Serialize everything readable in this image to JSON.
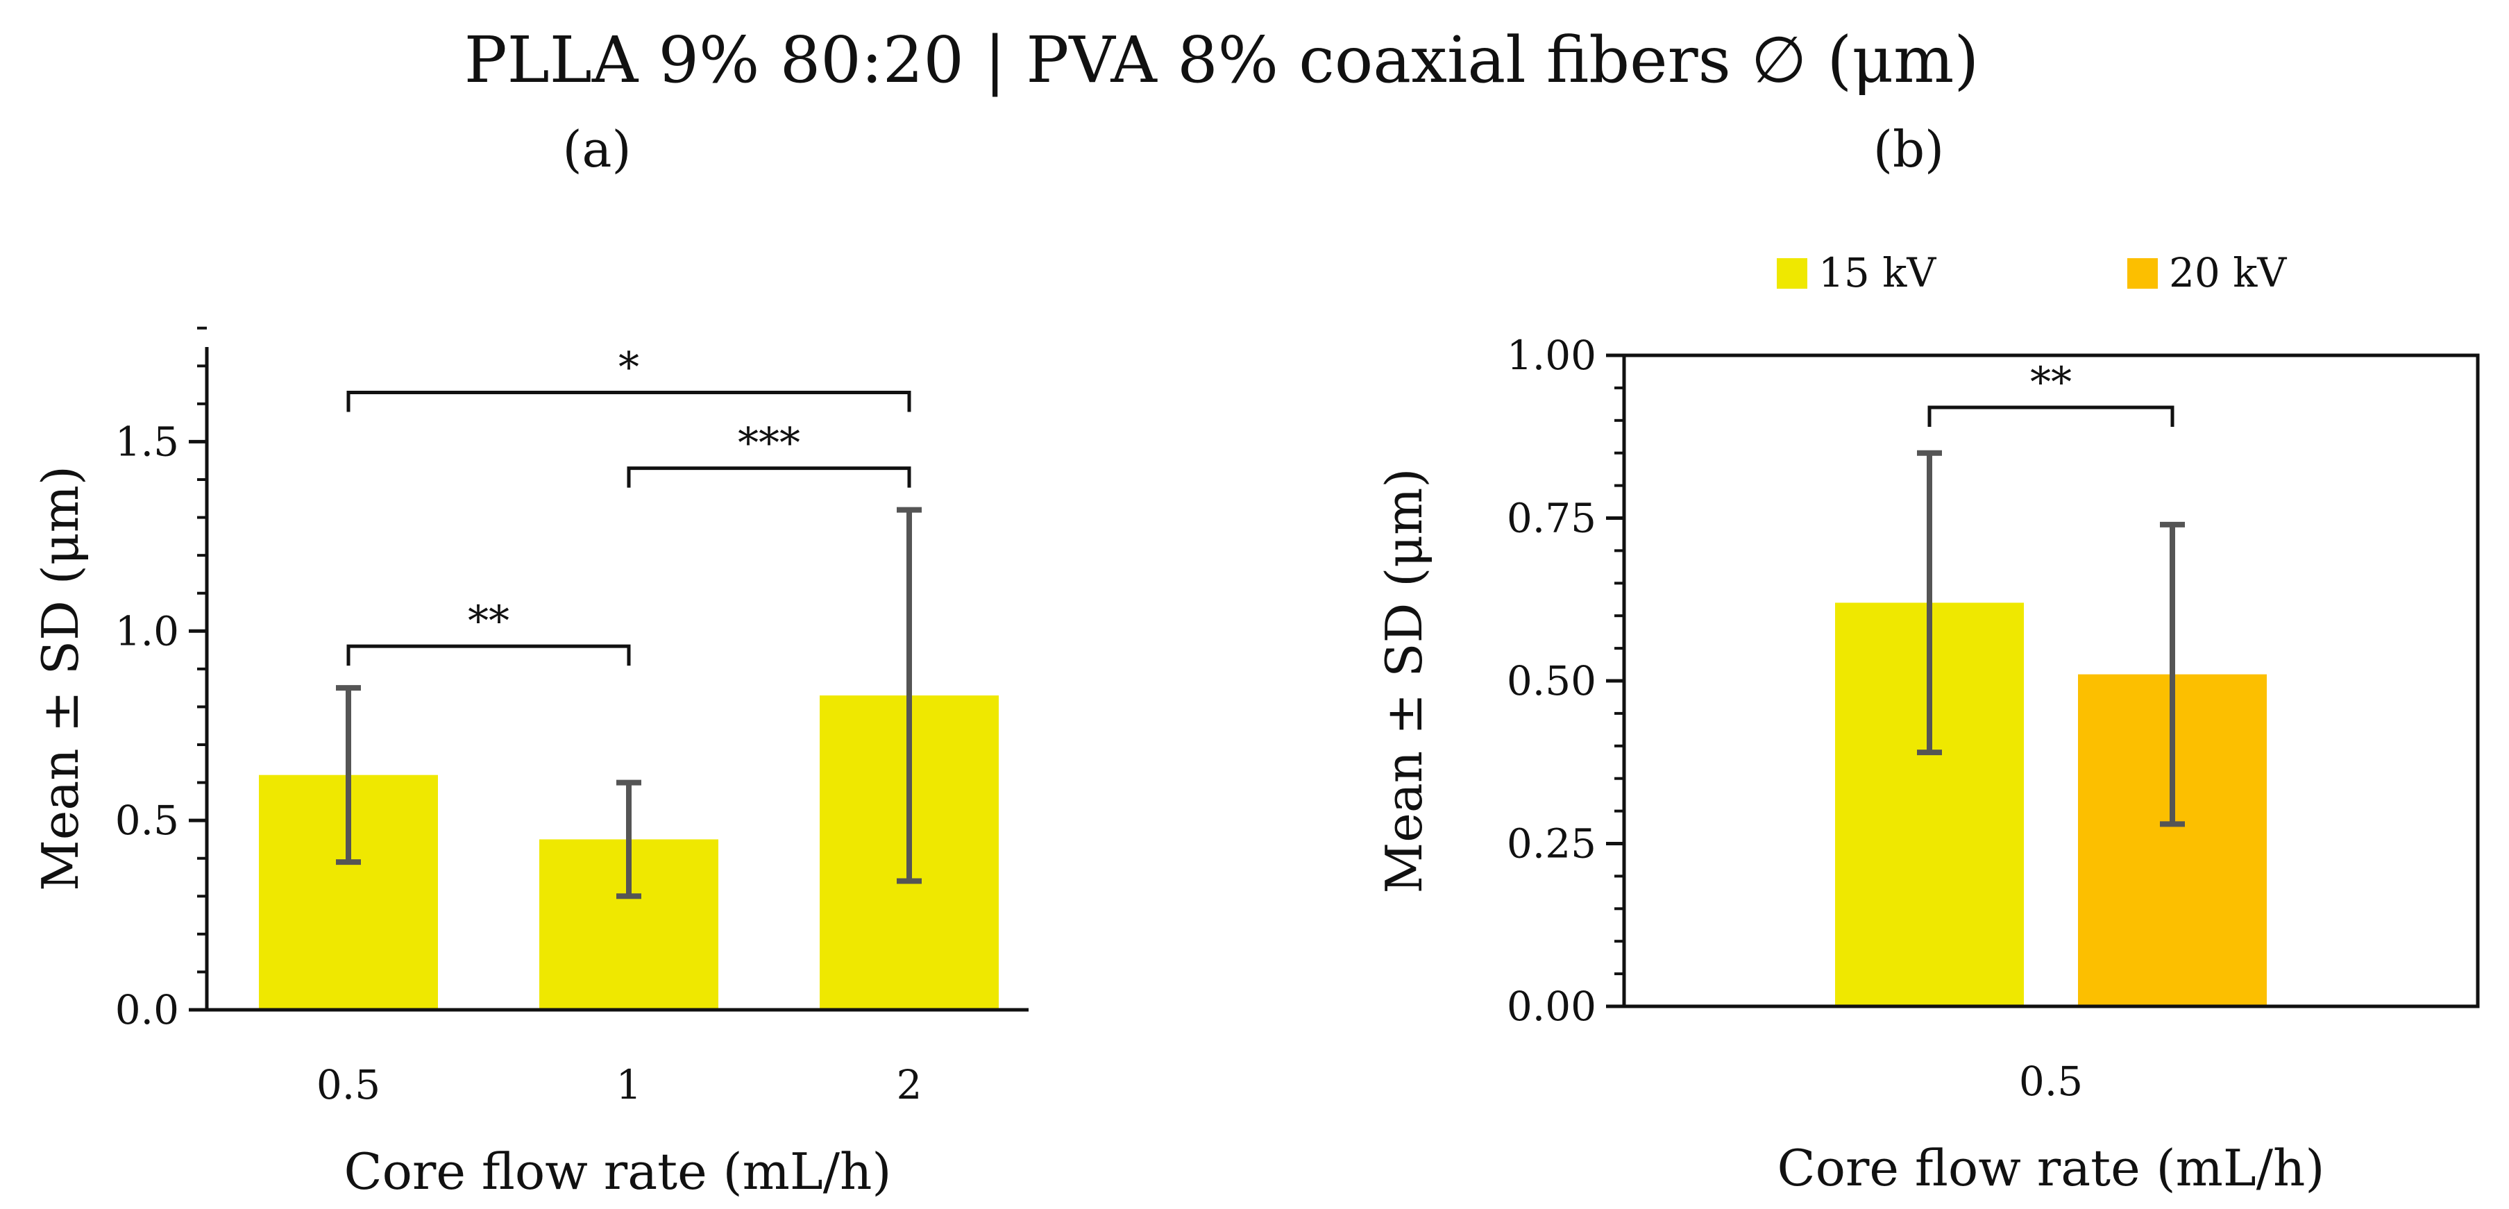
{
  "figure_title": "PLLA 9% 80:20 | PVA 8% coaxial fibers ∅ (μm)",
  "colors": {
    "yellow": "#EFE800",
    "orange": "#FCBF00",
    "error_bar": "#555555",
    "axis": "#111111"
  },
  "chart_data": [
    {
      "panel_label": "(a)",
      "type": "bar",
      "title": "",
      "categories": [
        "0.5",
        "1",
        "2"
      ],
      "series": [
        {
          "name": "",
          "color": "#EFE800",
          "values": [
            0.62,
            0.45,
            0.83
          ],
          "errors": [
            0.23,
            0.15,
            0.49
          ]
        }
      ],
      "xlabel": "Core flow rate (mL/h)",
      "ylabel": "Mean ± SD (μm)",
      "ylim": [
        0,
        1.75
      ],
      "yticks": [
        0.0,
        0.5,
        1.0,
        1.5
      ],
      "ytick_labels": [
        "0.0",
        "0.5",
        "1.0",
        "1.5"
      ],
      "minor_tick_step": 0.1,
      "legend": [],
      "significance": [
        {
          "from": 0,
          "to": 1,
          "label": "**",
          "y": 0.96
        },
        {
          "from": 1,
          "to": 2,
          "label": "***",
          "y": 1.43
        },
        {
          "from": 0,
          "to": 2,
          "label": "*",
          "y": 1.63
        }
      ]
    },
    {
      "panel_label": "(b)",
      "type": "bar",
      "title": "",
      "categories": [
        "0.5"
      ],
      "series": [
        {
          "name": "15 kV",
          "color": "#EFE800",
          "values": [
            0.62
          ],
          "errors": [
            0.23
          ]
        },
        {
          "name": "20 kV",
          "color": "#FCBF00",
          "values": [
            0.51
          ],
          "errors": [
            0.23
          ]
        }
      ],
      "xlabel": "Core flow rate (mL/h)",
      "ylabel": "Mean ± SD (μm)",
      "ylim": [
        0,
        1.0
      ],
      "yticks": [
        0.0,
        0.25,
        0.5,
        0.75,
        1.0
      ],
      "ytick_labels": [
        "0.00",
        "0.25",
        "0.50",
        "0.75",
        "1.00"
      ],
      "minor_tick_step": 0.05,
      "legend": [
        "15 kV",
        "20 kV"
      ],
      "legend_position": "top",
      "significance": [
        {
          "from": 0,
          "to": 1,
          "label": "**",
          "y": 0.92
        }
      ]
    }
  ]
}
